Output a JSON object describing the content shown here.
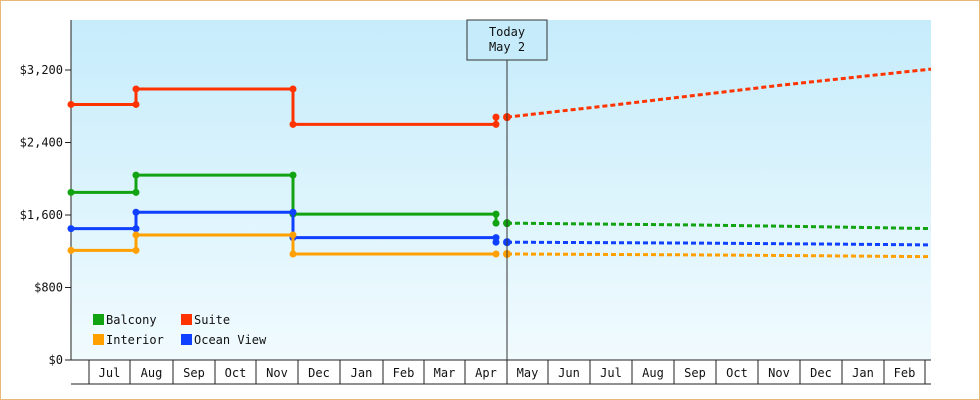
{
  "chart_data": {
    "type": "line",
    "y_ticks": [
      "$0",
      "$800",
      "$1,600",
      "$2,400",
      "$3,200"
    ],
    "ylim": [
      0,
      3200
    ],
    "today_label": [
      "Today",
      "May 2"
    ],
    "x_labels": [
      "Jul",
      "Aug",
      "Sep",
      "Oct",
      "Nov",
      "Dec",
      "Jan",
      "Feb",
      "Mar",
      "Apr",
      "May",
      "Jun",
      "Jul",
      "Aug",
      "Sep",
      "Oct",
      "Nov",
      "Dec",
      "Jan",
      "Feb"
    ],
    "legend": [
      {
        "key": "balcony",
        "label": "Balcony",
        "color": "#11a311"
      },
      {
        "key": "suite",
        "label": "Suite",
        "color": "#ff3300"
      },
      {
        "key": "interior",
        "label": "Interior",
        "color": "#ffa000"
      },
      {
        "key": "ocean",
        "label": "Ocean View",
        "color": "#1040ff"
      }
    ],
    "series": [
      {
        "name": "Suite",
        "color": "#ff3300",
        "history": [
          [
            "Jun",
            2820
          ],
          [
            "Aug",
            2820
          ],
          [
            "Aug",
            2990
          ],
          [
            "Nov",
            2990
          ],
          [
            "Nov",
            2600
          ],
          [
            "Apr",
            2600
          ],
          [
            "Apr",
            2680
          ]
        ],
        "forecast": [
          [
            "May",
            2680
          ],
          [
            "Jul",
            2810
          ],
          [
            "Sep",
            2920
          ],
          [
            "Nov",
            3030
          ],
          [
            "Jan",
            3130
          ],
          [
            "Feb",
            3210
          ]
        ]
      },
      {
        "name": "Balcony",
        "color": "#11a311",
        "history": [
          [
            "Jun",
            1850
          ],
          [
            "Aug",
            1850
          ],
          [
            "Aug",
            2040
          ],
          [
            "Nov",
            2040
          ],
          [
            "Nov",
            1610
          ],
          [
            "Apr",
            1610
          ],
          [
            "Apr",
            1510
          ]
        ],
        "forecast": [
          [
            "May",
            1510
          ],
          [
            "Sep",
            1490
          ],
          [
            "Dec",
            1470
          ],
          [
            "Feb",
            1450
          ]
        ]
      },
      {
        "name": "Ocean View",
        "color": "#1040ff",
        "history": [
          [
            "Jun",
            1450
          ],
          [
            "Aug",
            1450
          ],
          [
            "Aug",
            1630
          ],
          [
            "Nov",
            1630
          ],
          [
            "Nov",
            1350
          ],
          [
            "Apr",
            1350
          ],
          [
            "Apr",
            1300
          ]
        ],
        "forecast": [
          [
            "May",
            1300
          ],
          [
            "Sep",
            1290
          ],
          [
            "Dec",
            1280
          ],
          [
            "Feb",
            1270
          ]
        ]
      },
      {
        "name": "Interior",
        "color": "#ffa000",
        "history": [
          [
            "Jun",
            1210
          ],
          [
            "Aug",
            1210
          ],
          [
            "Aug",
            1380
          ],
          [
            "Nov",
            1380
          ],
          [
            "Nov",
            1170
          ],
          [
            "Apr",
            1170
          ]
        ],
        "forecast": [
          [
            "May",
            1170
          ],
          [
            "Sep",
            1160
          ],
          [
            "Dec",
            1150
          ],
          [
            "Feb",
            1140
          ]
        ]
      }
    ]
  }
}
